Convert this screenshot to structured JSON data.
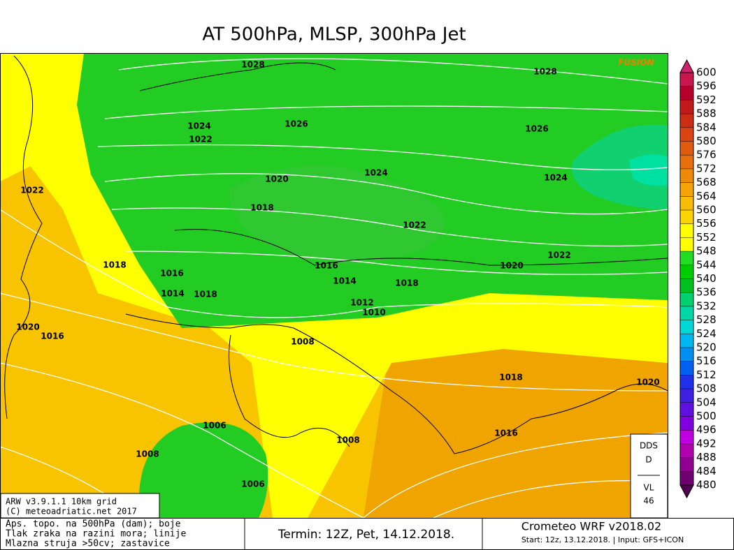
{
  "title": "AT 500hPa, MLSP, 300hPa Jet",
  "map": {
    "brand": "FUSION",
    "isobar_labels": [
      1028,
      1028,
      1026,
      1024,
      1022,
      1026,
      1024,
      1020,
      1024,
      1022,
      1018,
      1022,
      1018,
      1016,
      1016,
      1020,
      1022,
      1014,
      1018,
      1014,
      1018,
      1012,
      1010,
      1020,
      1016,
      1008,
      1018,
      1020,
      1006,
      1016,
      1008,
      1008,
      1006
    ]
  },
  "colorbar": {
    "labels": [
      600,
      596,
      592,
      588,
      584,
      580,
      576,
      572,
      568,
      564,
      560,
      556,
      552,
      548,
      544,
      540,
      536,
      532,
      528,
      524,
      520,
      516,
      512,
      508,
      504,
      500,
      496,
      492,
      488,
      484,
      480
    ],
    "colors": [
      "#c8164e",
      "#b4002a",
      "#c01a1a",
      "#cc2e14",
      "#d84412",
      "#e05a10",
      "#e8700c",
      "#ee8a0a",
      "#f4a408",
      "#f8bc06",
      "#fcd404",
      "#ffff00",
      "#ffff00",
      "#22dd22",
      "#00cc00",
      "#00c020",
      "#00d070",
      "#00d8a8",
      "#00d8d8",
      "#00b8f0",
      "#0090f0",
      "#0060f0",
      "#2030e8",
      "#4020e0",
      "#6010e0",
      "#8000e0",
      "#c000e0",
      "#b000b0",
      "#900090",
      "#700070"
    ],
    "over_color": "#d0206a",
    "under_color": "#500050"
  },
  "info_box": [
    "ARW v3.9.1.1 10km grid",
    "(C) meteoadriatic.net 2017"
  ],
  "dds_box": [
    "DDS",
    "D",
    "VL",
    "46"
  ],
  "legend_box": [
    "Aps. topo. na 500hPa (dam); boje",
    "Tlak zraka na razini mora; linije",
    "Mlazna struja >50cv; zastavice"
  ],
  "run": "Termin: 12Z, Pet, 14.12.2018.",
  "model": {
    "name": "Crometeo WRF v2018.02",
    "details": "Start: 12z, 13.12.2018. | Input: GFS+ICON"
  }
}
